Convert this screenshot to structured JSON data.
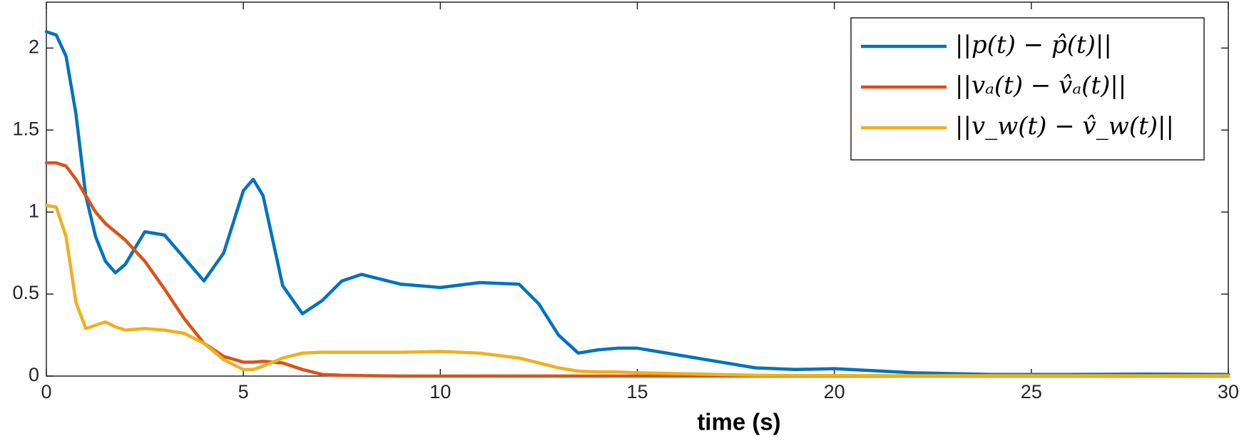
{
  "chart_data": {
    "type": "line",
    "xlabel": "time (s)",
    "x": [
      0,
      0.25,
      0.5,
      0.75,
      1,
      1.25,
      1.5,
      1.75,
      2,
      2.5,
      3,
      3.5,
      4,
      4.5,
      5,
      5.25,
      5.5,
      6,
      6.5,
      7,
      7.5,
      8,
      9,
      10,
      11,
      12,
      12.5,
      13,
      13.5,
      14,
      14.5,
      15,
      16,
      17,
      18,
      19,
      20,
      22,
      24,
      26,
      28,
      30
    ],
    "series": [
      {
        "name": "||p(t) − p̂(t)||",
        "color": "#0072bd",
        "values": [
          2.1,
          2.08,
          1.95,
          1.6,
          1.1,
          0.85,
          0.7,
          0.63,
          0.68,
          0.88,
          0.86,
          0.72,
          0.58,
          0.75,
          1.13,
          1.2,
          1.1,
          0.55,
          0.38,
          0.46,
          0.58,
          0.62,
          0.56,
          0.54,
          0.57,
          0.56,
          0.44,
          0.25,
          0.14,
          0.16,
          0.17,
          0.17,
          0.13,
          0.09,
          0.05,
          0.04,
          0.045,
          0.02,
          0.01,
          0.01,
          0.012,
          0.01
        ]
      },
      {
        "name": "||vₐ(t) − v̂ₐ(t)||",
        "color": "#d95319",
        "values": [
          1.3,
          1.3,
          1.28,
          1.2,
          1.1,
          1.0,
          0.93,
          0.88,
          0.83,
          0.7,
          0.53,
          0.35,
          0.2,
          0.12,
          0.085,
          0.085,
          0.09,
          0.08,
          0.04,
          0.01,
          0.005,
          0.003,
          0,
          0,
          0,
          0,
          0,
          0,
          0,
          0,
          0,
          0,
          0,
          0,
          0,
          0,
          0,
          0,
          0,
          0,
          0,
          0
        ]
      },
      {
        "name": "||v_w(t) − v̂_w(t)||",
        "color": "#edb120",
        "values": [
          1.04,
          1.03,
          0.85,
          0.45,
          0.29,
          0.31,
          0.33,
          0.3,
          0.28,
          0.29,
          0.28,
          0.26,
          0.2,
          0.1,
          0.04,
          0.04,
          0.06,
          0.11,
          0.14,
          0.145,
          0.145,
          0.145,
          0.145,
          0.15,
          0.14,
          0.11,
          0.08,
          0.05,
          0.03,
          0.025,
          0.025,
          0.02,
          0.015,
          0.01,
          0.005,
          0.003,
          0.003,
          0.002,
          0.002,
          0.002,
          0.002,
          0.002
        ]
      }
    ],
    "xlim": [
      0,
      30
    ],
    "xticks": [
      0,
      5,
      10,
      15,
      20,
      25,
      30
    ],
    "ylim": [
      0,
      2.28
    ],
    "yticks": [
      0,
      0.5,
      1,
      1.5,
      2
    ],
    "grid": false,
    "legend": "top-right"
  }
}
